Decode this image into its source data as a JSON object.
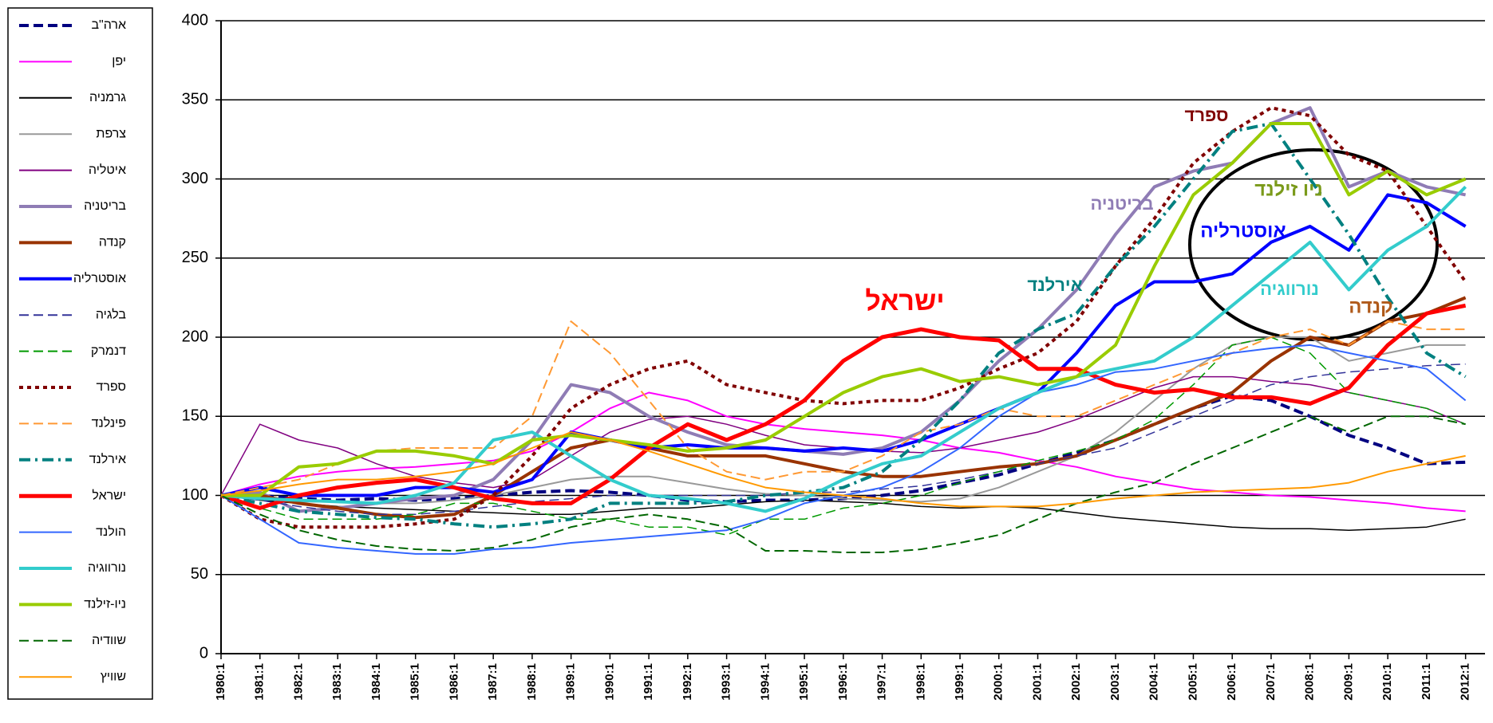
{
  "chart_data": {
    "type": "line",
    "categories": [
      "1980:1",
      "1981:1",
      "1982:1",
      "1983:1",
      "1984:1",
      "1985:1",
      "1986:1",
      "1987:1",
      "1988:1",
      "1989:1",
      "1990:1",
      "1991:1",
      "1992:1",
      "1993:1",
      "1994:1",
      "1995:1",
      "1996:1",
      "1997:1",
      "1998:1",
      "1999:1",
      "2000:1",
      "2001:1",
      "2002:1",
      "2003:1",
      "2004:1",
      "2005:1",
      "2006:1",
      "2007:1",
      "2008:1",
      "2009:1",
      "2010:1",
      "2011:1",
      "2012:1"
    ],
    "ylim": [
      0,
      400
    ],
    "yticks": [
      0,
      50,
      100,
      150,
      200,
      250,
      300,
      350,
      400
    ],
    "grid": true,
    "series": [
      {
        "name": "ארה\"ב",
        "color": "#000080",
        "dash": "dashed",
        "width": 4,
        "values": [
          100,
          100,
          98,
          97,
          98,
          97,
          98,
          100,
          102,
          103,
          102,
          100,
          97,
          96,
          97,
          97,
          98,
          100,
          103,
          108,
          113,
          120,
          127,
          135,
          145,
          155,
          163,
          160,
          150,
          138,
          130,
          120,
          121
        ]
      },
      {
        "name": "יפן",
        "color": "#ff00ff",
        "dash": "solid",
        "width": 2,
        "values": [
          100,
          107,
          112,
          115,
          117,
          118,
          120,
          122,
          128,
          140,
          155,
          165,
          160,
          150,
          145,
          142,
          140,
          138,
          135,
          130,
          127,
          122,
          118,
          112,
          108,
          104,
          102,
          100,
          99,
          97,
          95,
          92,
          90
        ]
      },
      {
        "name": "גרמניה",
        "color": "#000000",
        "dash": "solid",
        "width": 1.5,
        "values": [
          100,
          97,
          95,
          93,
          92,
          91,
          90,
          89,
          88,
          88,
          90,
          92,
          92,
          94,
          96,
          97,
          96,
          95,
          93,
          92,
          93,
          92,
          89,
          86,
          84,
          82,
          80,
          79,
          79,
          78,
          79,
          80,
          85
        ]
      },
      {
        "name": "צרפת",
        "color": "#999999",
        "dash": "solid",
        "width": 2,
        "values": [
          100,
          98,
          96,
          96,
          95,
          95,
          97,
          100,
          105,
          110,
          112,
          112,
          108,
          104,
          101,
          100,
          98,
          97,
          96,
          98,
          105,
          115,
          125,
          140,
          160,
          180,
          195,
          200,
          200,
          185,
          190,
          195,
          195
        ]
      },
      {
        "name": "איטליה",
        "color": "#800080",
        "dash": "solid",
        "width": 1.5,
        "values": [
          100,
          145,
          135,
          130,
          120,
          112,
          108,
          105,
          110,
          125,
          140,
          148,
          150,
          145,
          138,
          132,
          130,
          128,
          127,
          130,
          135,
          140,
          148,
          158,
          168,
          175,
          175,
          172,
          170,
          165,
          160,
          155,
          145
        ]
      },
      {
        "name": "בריטניה",
        "color": "#8f7cb5",
        "dash": "solid",
        "width": 4,
        "values": [
          100,
          102,
          90,
          92,
          95,
          98,
          100,
          110,
          135,
          170,
          165,
          150,
          140,
          132,
          130,
          128,
          126,
          130,
          140,
          160,
          185,
          205,
          230,
          265,
          295,
          305,
          310,
          335,
          345,
          295,
          305,
          295,
          290
        ]
      },
      {
        "name": "קנדה",
        "color": "#993300",
        "dash": "solid",
        "width": 4,
        "values": [
          100,
          100,
          95,
          92,
          88,
          86,
          88,
          100,
          115,
          130,
          135,
          130,
          125,
          125,
          125,
          120,
          115,
          112,
          112,
          115,
          118,
          120,
          125,
          135,
          145,
          155,
          165,
          185,
          200,
          195,
          210,
          215,
          225
        ]
      },
      {
        "name": "אוסטרליה",
        "color": "#0000ff",
        "dash": "solid",
        "width": 4,
        "values": [
          100,
          105,
          100,
          100,
          100,
          105,
          105,
          102,
          110,
          140,
          135,
          130,
          132,
          130,
          130,
          128,
          130,
          128,
          135,
          145,
          155,
          165,
          190,
          220,
          235,
          235,
          240,
          260,
          270,
          255,
          290,
          285,
          270
        ]
      },
      {
        "name": "בלגיה",
        "color": "#333399",
        "dash": "dashed",
        "width": 1.5,
        "values": [
          100,
          97,
          93,
          90,
          88,
          88,
          90,
          93,
          96,
          98,
          100,
          100,
          100,
          100,
          100,
          102,
          102,
          104,
          106,
          110,
          115,
          120,
          125,
          130,
          140,
          150,
          160,
          170,
          175,
          178,
          180,
          182,
          183
        ]
      },
      {
        "name": "דנמרק",
        "color": "#009900",
        "dash": "dashed",
        "width": 1.5,
        "values": [
          100,
          92,
          85,
          85,
          85,
          88,
          95,
          95,
          90,
          85,
          85,
          80,
          80,
          75,
          85,
          85,
          92,
          95,
          100,
          108,
          115,
          122,
          128,
          135,
          148,
          170,
          195,
          200,
          190,
          165,
          160,
          155,
          145
        ]
      },
      {
        "name": "ספרד",
        "color": "#800000",
        "dash": "dotted",
        "width": 4,
        "values": [
          100,
          85,
          80,
          80,
          80,
          82,
          85,
          100,
          125,
          155,
          170,
          180,
          185,
          170,
          165,
          160,
          158,
          160,
          160,
          168,
          180,
          190,
          210,
          245,
          275,
          310,
          330,
          345,
          340,
          315,
          305,
          270,
          235
        ]
      },
      {
        "name": "פינלנד",
        "color": "#ff9933",
        "dash": "dashed",
        "width": 2,
        "values": [
          100,
          105,
          110,
          120,
          128,
          130,
          130,
          130,
          150,
          210,
          190,
          160,
          130,
          115,
          110,
          115,
          115,
          125,
          140,
          145,
          155,
          150,
          150,
          160,
          170,
          180,
          190,
          200,
          205,
          195,
          210,
          205,
          205
        ]
      },
      {
        "name": "אירלנד",
        "color": "#008080",
        "dash": "dashdot",
        "width": 4,
        "values": [
          100,
          95,
          90,
          88,
          86,
          85,
          82,
          80,
          82,
          85,
          95,
          95,
          95,
          96,
          100,
          102,
          105,
          115,
          135,
          160,
          190,
          205,
          215,
          245,
          270,
          300,
          330,
          335,
          300,
          265,
          225,
          190,
          175
        ]
      },
      {
        "name": "ישראל",
        "color": "#ff0000",
        "dash": "solid",
        "width": 5,
        "values": [
          100,
          92,
          100,
          105,
          108,
          110,
          105,
          98,
          95,
          95,
          110,
          130,
          145,
          135,
          145,
          160,
          185,
          200,
          205,
          200,
          198,
          180,
          180,
          170,
          165,
          167,
          162,
          162,
          158,
          168,
          195,
          215,
          220
        ]
      },
      {
        "name": "הולנד",
        "color": "#3366ff",
        "dash": "solid",
        "width": 2,
        "values": [
          100,
          85,
          70,
          67,
          65,
          63,
          63,
          66,
          67,
          70,
          72,
          74,
          76,
          78,
          85,
          95,
          100,
          105,
          115,
          130,
          150,
          165,
          170,
          178,
          180,
          185,
          190,
          193,
          195,
          190,
          185,
          180,
          160
        ]
      },
      {
        "name": "נורווגיה",
        "color": "#33cccc",
        "dash": "solid",
        "width": 4,
        "values": [
          100,
          98,
          97,
          96,
          95,
          100,
          108,
          135,
          140,
          125,
          110,
          100,
          98,
          95,
          90,
          98,
          110,
          120,
          125,
          140,
          155,
          165,
          175,
          180,
          185,
          200,
          220,
          240,
          260,
          230,
          255,
          270,
          295
        ]
      },
      {
        "name": "ניו-זילנד",
        "color": "#99cc00",
        "dash": "solid",
        "width": 4,
        "values": [
          100,
          100,
          118,
          120,
          128,
          128,
          125,
          120,
          135,
          138,
          135,
          132,
          128,
          130,
          135,
          150,
          165,
          175,
          180,
          172,
          175,
          170,
          175,
          195,
          245,
          290,
          310,
          335,
          335,
          290,
          305,
          290,
          300
        ]
      },
      {
        "name": "שוודיה",
        "color": "#006600",
        "dash": "dashed",
        "width": 2,
        "values": [
          100,
          88,
          78,
          72,
          68,
          66,
          65,
          67,
          72,
          80,
          85,
          88,
          85,
          80,
          65,
          65,
          64,
          64,
          66,
          70,
          75,
          85,
          95,
          102,
          108,
          120,
          130,
          140,
          150,
          140,
          150,
          150,
          145
        ]
      },
      {
        "name": "שוויץ",
        "color": "#ff9900",
        "dash": "solid",
        "width": 2,
        "values": [
          100,
          103,
          107,
          110,
          110,
          112,
          115,
          120,
          130,
          140,
          135,
          128,
          120,
          112,
          105,
          102,
          100,
          98,
          95,
          93,
          93,
          93,
          95,
          98,
          100,
          102,
          103,
          104,
          105,
          108,
          115,
          120,
          125
        ]
      }
    ],
    "annotations": [
      {
        "text": "ספרד",
        "color": "#800000"
      },
      {
        "text": "בריטניה",
        "color": "#8f7cb5"
      },
      {
        "text": "ניו זילנד",
        "color": "#7a9a1a"
      },
      {
        "text": "אוסטרליה",
        "color": "#0000ff"
      },
      {
        "text": "אירלנד",
        "color": "#008080"
      },
      {
        "text": "ישראל",
        "color": "#ff0000"
      },
      {
        "text": "נורווגיה",
        "color": "#33cccc"
      },
      {
        "text": "קנדה",
        "color": "#b05a1a"
      }
    ]
  }
}
